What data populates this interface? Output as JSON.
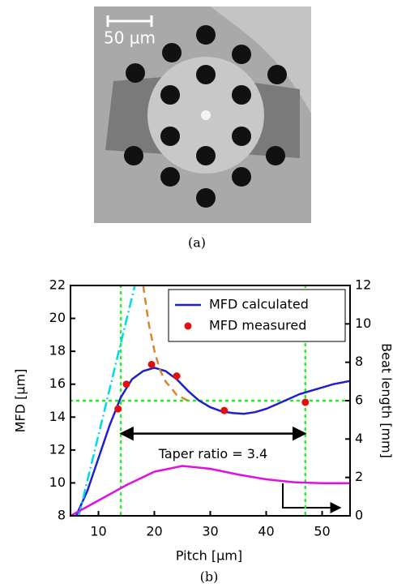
{
  "image": {
    "scale_label": "50 µm",
    "caption": "(a)"
  },
  "chart_data": {
    "type": "line",
    "caption": "(b)",
    "xlabel": "Pitch [µm]",
    "ylabel": "MFD [µm]",
    "y2label": "Beat length [mm]",
    "xlim": [
      5,
      55
    ],
    "xticks": [
      10,
      20,
      30,
      40,
      50
    ],
    "ylim": [
      8,
      22
    ],
    "yticks": [
      8,
      10,
      12,
      14,
      16,
      18,
      20,
      22
    ],
    "y2lim": [
      0,
      12
    ],
    "y2ticks": [
      0,
      2,
      4,
      6,
      8,
      10,
      12
    ],
    "legend": "upper right",
    "series": [
      {
        "name": "MFD calculated",
        "color": "#1f1fd0",
        "style": "solid",
        "x": [
          6,
          8,
          10,
          12,
          14,
          16,
          18,
          20,
          22,
          24,
          26,
          28,
          30,
          32,
          34,
          36,
          38,
          40,
          42,
          44,
          46,
          48,
          50,
          52,
          55
        ],
        "values": [
          8,
          9.5,
          11.5,
          13.5,
          15.2,
          16.3,
          16.8,
          17,
          16.8,
          16.3,
          15.6,
          15,
          14.6,
          14.35,
          14.25,
          14.2,
          14.3,
          14.5,
          14.8,
          15.1,
          15.4,
          15.6,
          15.8,
          16,
          16.2
        ]
      },
      {
        "name": "MFD measured",
        "color": "#e01010",
        "style": "dots",
        "x": [
          13.5,
          15,
          19.5,
          24,
          32.5,
          47
        ],
        "values": [
          14.5,
          16,
          17.2,
          16.5,
          14.4,
          14.9
        ]
      },
      {
        "color": "#00d8e8",
        "style": "dashdot",
        "x": [
          6.5,
          16.5
        ],
        "values": [
          8,
          22
        ]
      },
      {
        "color": "#d8862a",
        "style": "dashed",
        "axis": "y2",
        "x": [
          18,
          19,
          20,
          21,
          22,
          24,
          26
        ],
        "values": [
          12,
          10,
          8.6,
          7.6,
          7,
          6.3,
          6
        ]
      },
      {
        "color": "#e010e0",
        "style": "solid",
        "axis": "y2",
        "x": [
          5,
          10,
          15,
          20,
          25,
          30,
          35,
          40,
          45,
          50,
          55
        ],
        "values": [
          0,
          0.8,
          1.6,
          2.3,
          2.6,
          2.45,
          2.15,
          1.9,
          1.75,
          1.7,
          1.7
        ]
      }
    ],
    "hlines": [
      15
    ],
    "vlines": [
      14,
      47
    ],
    "annotation": {
      "label": "Taper ratio = 3.4",
      "x": [
        14,
        47
      ],
      "y": 13
    }
  }
}
